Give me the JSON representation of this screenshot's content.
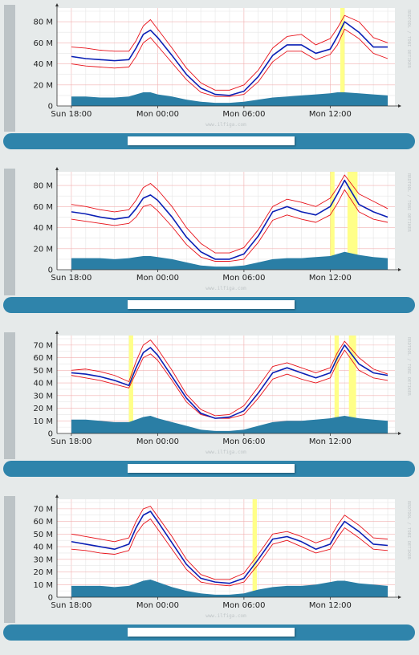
{
  "chart_data": [
    {
      "type": "line",
      "x_ticks": [
        "Sun 18:00",
        "Mon 00:00",
        "Mon 06:00",
        "Mon 12:00"
      ],
      "y_ticks": [
        "0",
        "20 M",
        "40 M",
        "60 M",
        "80 M"
      ],
      "ylim": [
        0,
        90
      ],
      "watermark": "www.ilfiga.com",
      "side_text": "RRDTOOL / TOBI OETIKER",
      "grid": true,
      "x": [
        -6,
        -5,
        -4,
        -3,
        -2,
        -1.5,
        -1,
        -0.5,
        0,
        1,
        2,
        3,
        4,
        5,
        6,
        7,
        8,
        9,
        10,
        11,
        12,
        12.5,
        13,
        14,
        15,
        16
      ],
      "series": [
        {
          "values": [
            47,
            45,
            44,
            43,
            44,
            55,
            68,
            72,
            65,
            48,
            30,
            17,
            11,
            10,
            14,
            28,
            48,
            58,
            58,
            50,
            54,
            66,
            80,
            70,
            56,
            56
          ]
        },
        {
          "values": [
            56,
            55,
            53,
            52,
            52,
            62,
            76,
            82,
            73,
            55,
            36,
            22,
            15,
            15,
            20,
            34,
            55,
            66,
            68,
            58,
            64,
            74,
            86,
            80,
            65,
            60
          ]
        },
        {
          "values": [
            40,
            38,
            37,
            36,
            37,
            47,
            60,
            65,
            57,
            41,
            25,
            13,
            9,
            9,
            11,
            23,
            42,
            52,
            52,
            44,
            49,
            58,
            73,
            64,
            50,
            45
          ]
        },
        {
          "values": [
            9,
            9,
            8,
            8,
            9,
            11,
            13,
            13,
            11,
            9,
            6,
            4,
            3,
            3,
            4,
            6,
            8,
            9,
            10,
            11,
            12,
            13,
            13,
            12,
            11,
            10
          ]
        }
      ],
      "highlights": [
        [
          12.7,
          13.0
        ]
      ],
      "colors": {
        "main": "#0a1fb5",
        "bound": "#e8121a",
        "area": "#2a7ea5",
        "highlight": "#ffff88"
      }
    },
    {
      "type": "line",
      "x_ticks": [
        "Sun 18:00",
        "Mon 00:00",
        "Mon 06:00",
        "Mon 12:00"
      ],
      "y_ticks": [
        "0",
        "20 M",
        "40 M",
        "60 M",
        "80 M"
      ],
      "ylim": [
        0,
        90
      ],
      "watermark": "www.ilfiga.com",
      "side_text": "RRDTOOL / TOBI OETIKER",
      "grid": true,
      "x": [
        -6,
        -5,
        -4,
        -3,
        -2,
        -1.5,
        -1,
        -0.5,
        0,
        1,
        2,
        3,
        4,
        5,
        6,
        7,
        8,
        9,
        10,
        11,
        12,
        12.5,
        13,
        14,
        15,
        16
      ],
      "series": [
        {
          "values": [
            55,
            53,
            50,
            48,
            50,
            58,
            68,
            71,
            66,
            50,
            31,
            17,
            10,
            10,
            15,
            32,
            55,
            60,
            55,
            52,
            60,
            72,
            85,
            62,
            55,
            50
          ]
        },
        {
          "values": [
            62,
            60,
            57,
            55,
            57,
            66,
            78,
            82,
            76,
            60,
            40,
            25,
            16,
            16,
            21,
            38,
            60,
            67,
            64,
            60,
            68,
            78,
            90,
            72,
            65,
            58
          ]
        },
        {
          "values": [
            48,
            46,
            44,
            42,
            44,
            50,
            60,
            62,
            56,
            41,
            24,
            12,
            8,
            8,
            10,
            26,
            47,
            52,
            48,
            45,
            52,
            63,
            76,
            55,
            48,
            45
          ]
        },
        {
          "values": [
            11,
            11,
            11,
            10,
            11,
            12,
            13,
            13,
            12,
            10,
            7,
            4,
            3,
            3,
            4,
            7,
            10,
            11,
            11,
            12,
            13,
            15,
            17,
            14,
            12,
            11
          ]
        }
      ],
      "highlights": [
        [
          12.0,
          12.3
        ],
        [
          13.2,
          13.9
        ]
      ],
      "colors": {
        "main": "#0a1fb5",
        "bound": "#e8121a",
        "area": "#2a7ea5",
        "highlight": "#ffff88"
      }
    },
    {
      "type": "line",
      "x_ticks": [
        "Sun 18:00",
        "Mon 00:00",
        "Mon 06:00",
        "Mon 12:00"
      ],
      "y_ticks": [
        "0",
        "10 M",
        "20 M",
        "30 M",
        "40 M",
        "50 M",
        "60 M",
        "70 M"
      ],
      "ylim": [
        0,
        75
      ],
      "watermark": "www.ilfiga.com",
      "side_text": "RRDTOOL / TOBI OETIKER",
      "grid": true,
      "x": [
        -6,
        -5,
        -4,
        -3,
        -2,
        -1.5,
        -1,
        -0.5,
        0,
        1,
        2,
        3,
        4,
        5,
        6,
        7,
        8,
        9,
        10,
        11,
        12,
        12.5,
        13,
        14,
        15,
        16
      ],
      "series": [
        {
          "values": [
            48,
            47,
            45,
            42,
            38,
            52,
            64,
            68,
            62,
            45,
            28,
            16,
            12,
            13,
            18,
            32,
            48,
            52,
            48,
            44,
            48,
            60,
            70,
            55,
            48,
            46
          ]
        },
        {
          "values": [
            50,
            51,
            49,
            46,
            41,
            57,
            70,
            74,
            67,
            50,
            31,
            19,
            14,
            15,
            22,
            37,
            53,
            56,
            52,
            48,
            52,
            64,
            73,
            60,
            51,
            47
          ]
        },
        {
          "values": [
            46,
            44,
            42,
            39,
            36,
            48,
            60,
            63,
            58,
            42,
            25,
            15,
            12,
            12,
            15,
            28,
            43,
            47,
            43,
            40,
            44,
            56,
            66,
            50,
            44,
            42
          ]
        },
        {
          "values": [
            11,
            11,
            10,
            9,
            9,
            11,
            13,
            14,
            12,
            9,
            6,
            3,
            2,
            2,
            3,
            6,
            9,
            10,
            10,
            11,
            12,
            13,
            14,
            12,
            11,
            10
          ]
        }
      ],
      "highlights": [
        [
          -2.0,
          -1.7
        ],
        [
          12.3,
          12.6
        ],
        [
          13.3,
          13.8
        ]
      ],
      "colors": {
        "main": "#0a1fb5",
        "bound": "#e8121a",
        "area": "#2a7ea5",
        "highlight": "#ffff88"
      }
    },
    {
      "type": "line",
      "x_ticks": [
        "Sun 18:00",
        "Mon 00:00",
        "Mon 06:00",
        "Mon 12:00"
      ],
      "y_ticks": [
        "0",
        "10 M",
        "20 M",
        "30 M",
        "40 M",
        "50 M",
        "60 M",
        "70 M"
      ],
      "ylim": [
        0,
        75
      ],
      "watermark": "www.ilfiga.com",
      "side_text": "RRDTOOL / TOBI OETIKER",
      "grid": true,
      "x": [
        -6,
        -5,
        -4,
        -3,
        -2,
        -1.5,
        -1,
        -0.5,
        0,
        1,
        2,
        3,
        4,
        5,
        6,
        7,
        8,
        9,
        10,
        11,
        12,
        12.5,
        13,
        14,
        15,
        16
      ],
      "series": [
        {
          "values": [
            44,
            42,
            40,
            38,
            42,
            55,
            65,
            68,
            60,
            43,
            26,
            15,
            12,
            11,
            15,
            30,
            46,
            48,
            44,
            38,
            42,
            52,
            60,
            52,
            42,
            41
          ]
        },
        {
          "values": [
            50,
            48,
            46,
            44,
            47,
            60,
            70,
            72,
            64,
            48,
            30,
            18,
            14,
            14,
            19,
            34,
            50,
            52,
            48,
            43,
            47,
            57,
            65,
            57,
            47,
            46
          ]
        },
        {
          "values": [
            38,
            37,
            35,
            34,
            37,
            50,
            58,
            62,
            54,
            38,
            22,
            12,
            10,
            9,
            12,
            26,
            42,
            45,
            40,
            35,
            38,
            47,
            55,
            47,
            38,
            37
          ]
        },
        {
          "values": [
            9,
            9,
            9,
            8,
            9,
            11,
            13,
            14,
            12,
            8,
            5,
            3,
            2,
            2,
            3,
            6,
            8,
            9,
            9,
            10,
            12,
            13,
            13,
            11,
            10,
            9
          ]
        }
      ],
      "highlights": [
        [
          6.6,
          6.9
        ]
      ],
      "colors": {
        "main": "#0a1fb5",
        "bound": "#e8121a",
        "area": "#2a7ea5",
        "highlight": "#ffff88"
      }
    }
  ]
}
